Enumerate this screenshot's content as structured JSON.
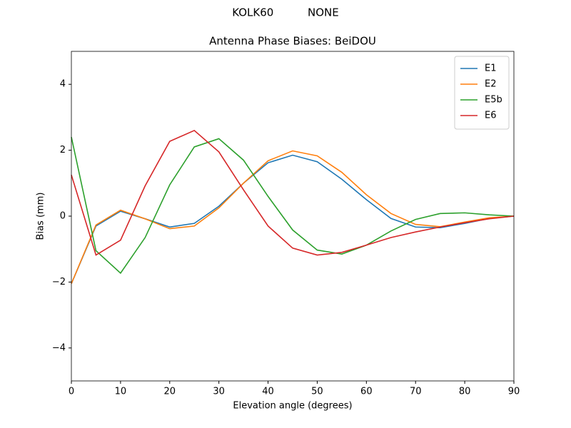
{
  "chart_data": {
    "type": "line",
    "suptitle": "KOLK60          NONE",
    "title": "Antenna Phase Biases: BeiDOU",
    "xlabel": "Elevation angle (degrees)",
    "ylabel": "Bias (mm)",
    "x": [
      0,
      5,
      10,
      15,
      20,
      25,
      30,
      35,
      40,
      45,
      50,
      55,
      60,
      65,
      70,
      75,
      80,
      85,
      90
    ],
    "series": [
      {
        "name": "E1",
        "color": "#1f77b4",
        "values": [
          -2.05,
          -0.3,
          0.15,
          -0.08,
          -0.33,
          -0.22,
          0.3,
          1.0,
          1.62,
          1.85,
          1.65,
          1.12,
          0.5,
          -0.07,
          -0.33,
          -0.35,
          -0.22,
          -0.07,
          0
        ]
      },
      {
        "name": "E2",
        "color": "#ff7f0e",
        "values": [
          -2.05,
          -0.27,
          0.18,
          -0.08,
          -0.38,
          -0.3,
          0.25,
          1.0,
          1.68,
          1.98,
          1.83,
          1.33,
          0.65,
          0.08,
          -0.25,
          -0.32,
          -0.18,
          -0.05,
          0
        ]
      },
      {
        "name": "E5b",
        "color": "#2ca02c",
        "values": [
          2.4,
          -1.05,
          -1.73,
          -0.65,
          0.95,
          2.1,
          2.35,
          1.7,
          0.6,
          -0.42,
          -1.03,
          -1.15,
          -0.88,
          -0.45,
          -0.1,
          0.08,
          0.1,
          0.04,
          0
        ]
      },
      {
        "name": "E6",
        "color": "#d62728",
        "values": [
          1.25,
          -1.18,
          -0.73,
          0.92,
          2.27,
          2.6,
          1.95,
          0.8,
          -0.3,
          -0.97,
          -1.18,
          -1.1,
          -0.88,
          -0.65,
          -0.48,
          -0.33,
          -0.2,
          -0.08,
          0
        ]
      }
    ],
    "xlim": [
      0,
      90
    ],
    "xticks": [
      0,
      10,
      20,
      30,
      40,
      50,
      60,
      70,
      80,
      90
    ],
    "ylim": [
      -5,
      5
    ],
    "yticks": [
      {
        "value": -4,
        "label": "−4"
      },
      {
        "value": -2,
        "label": "−2"
      },
      0,
      2,
      4
    ],
    "legend": "upper right"
  }
}
